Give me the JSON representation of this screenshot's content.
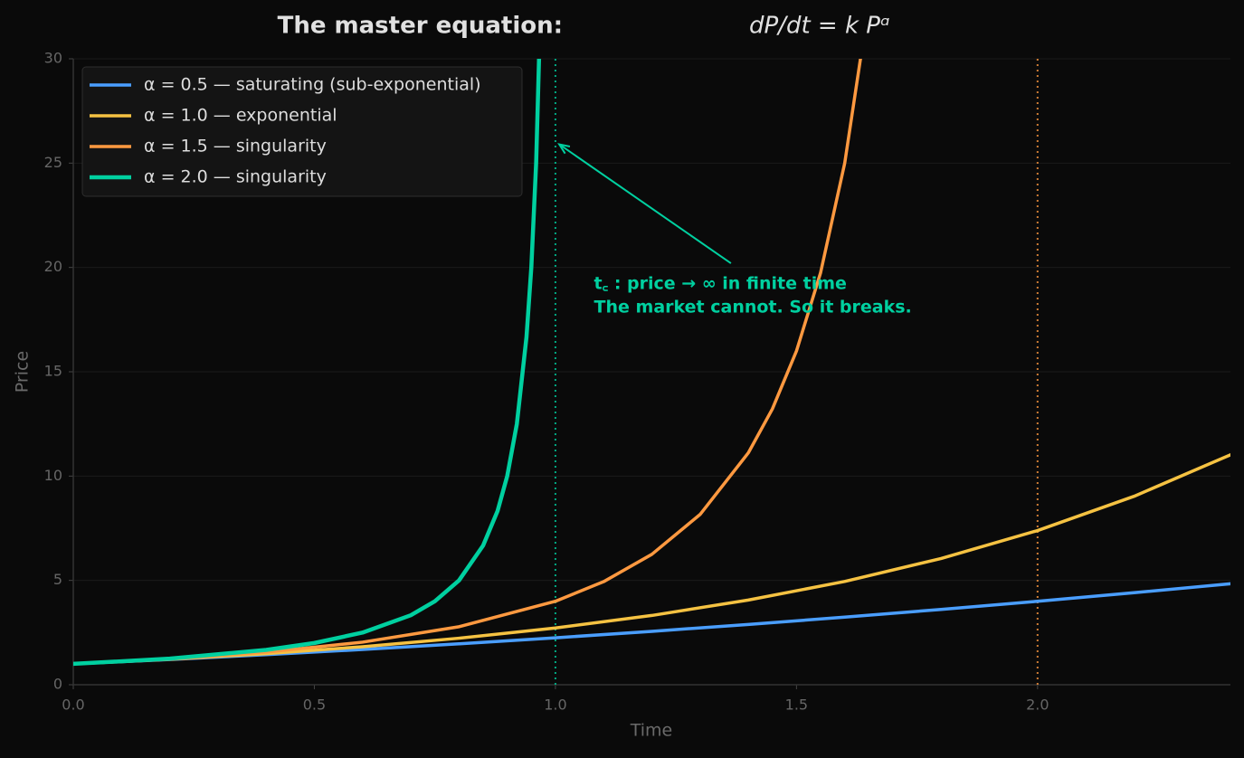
{
  "chart_data": {
    "type": "line",
    "title": "The master equation:",
    "title_equation": "dP/dt = k Pᵅ",
    "xlabel": "Time",
    "ylabel": "Price",
    "xlim": [
      0,
      2.4
    ],
    "ylim": [
      0,
      30
    ],
    "xticks": [
      {
        "value": 0,
        "label": "0.0"
      },
      0.5,
      {
        "value": 1,
        "label": "1.0"
      },
      1.5,
      {
        "value": 2,
        "label": "2.0"
      }
    ],
    "yticks": [
      0,
      5,
      10,
      15,
      20,
      25,
      30
    ],
    "grid": true,
    "legend": "upper left",
    "series": [
      {
        "name": "α = 0.5  — saturating (sub-exponential)",
        "color": "#4a9eff",
        "width": 3.5,
        "x": [
          0,
          0.2,
          0.4,
          0.6,
          0.8,
          1.0,
          1.2,
          1.4,
          1.6,
          1.8,
          2.0,
          2.2,
          2.4
        ],
        "values": [
          1,
          1.21,
          1.44,
          1.69,
          1.96,
          2.25,
          2.56,
          2.89,
          3.24,
          3.61,
          4,
          4.41,
          4.84
        ]
      },
      {
        "name": "α = 1.0  — exponential",
        "color": "#f5c242",
        "width": 3.5,
        "x": [
          0,
          0.2,
          0.4,
          0.6,
          0.8,
          1.0,
          1.2,
          1.4,
          1.6,
          1.8,
          2.0,
          2.2,
          2.4
        ],
        "values": [
          1,
          1.22,
          1.49,
          1.82,
          2.23,
          2.72,
          3.32,
          4.06,
          4.95,
          6.05,
          7.39,
          9.03,
          11.02
        ]
      },
      {
        "name": "α = 1.5  — singularity",
        "color": "#ff9940",
        "width": 3.5,
        "x": [
          0,
          0.2,
          0.4,
          0.6,
          0.8,
          1.0,
          1.1,
          1.2,
          1.3,
          1.4,
          1.45,
          1.5,
          1.55,
          1.6,
          1.65
        ],
        "values": [
          1,
          1.23,
          1.56,
          2.04,
          2.78,
          4,
          4.94,
          6.25,
          8.16,
          11.11,
          13.22,
          16,
          19.75,
          25,
          32.65
        ]
      },
      {
        "name": "α = 2.0  — singularity",
        "color": "#00d0a0",
        "width": 4.5,
        "x": [
          0,
          0.2,
          0.4,
          0.5,
          0.6,
          0.7,
          0.75,
          0.8,
          0.85,
          0.88,
          0.9,
          0.92,
          0.94,
          0.95,
          0.96,
          0.97
        ],
        "values": [
          1,
          1.25,
          1.67,
          2,
          2.5,
          3.33,
          4,
          5,
          6.67,
          8.33,
          10,
          12.5,
          16.67,
          20,
          25,
          33.33
        ]
      }
    ],
    "vlines": [
      {
        "x": 1,
        "color": "#00d0a0"
      },
      {
        "x": 2,
        "color": "#ff9940"
      }
    ],
    "annotation": {
      "lines": [
        "t꜀ : price → ∞ in finite time",
        "The market cannot. So it breaks."
      ],
      "color": "#00d0a0",
      "xytext": [
        1.08,
        19.2
      ],
      "xy": [
        1.008,
        25.9
      ],
      "arrow_from": [
        1.364,
        20.2
      ]
    }
  }
}
